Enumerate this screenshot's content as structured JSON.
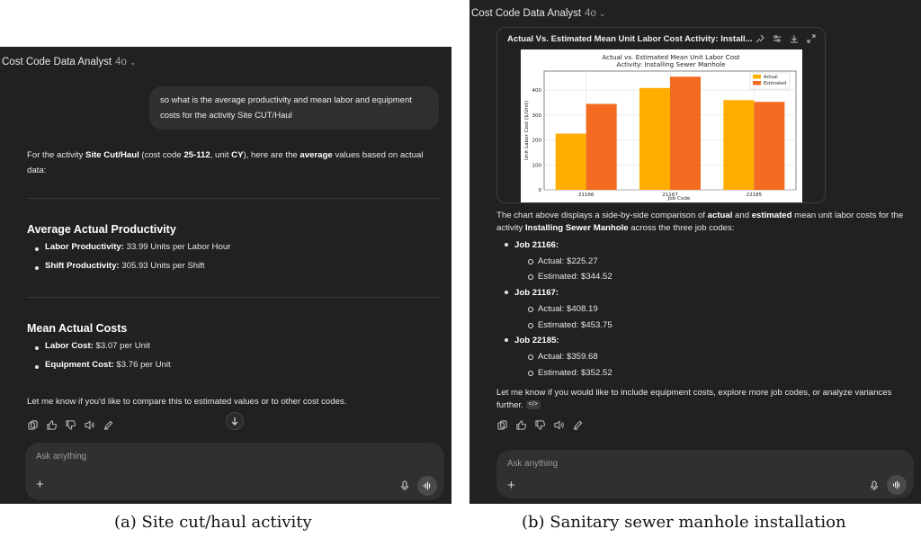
{
  "app": {
    "title": "Cost Code Data Analyst",
    "model": "4o"
  },
  "panel_a": {
    "user_message": "so what is the average productivity and mean labor and equipment costs for the activity Site CUT/Haul",
    "intro": {
      "p1": "For the activity ",
      "activity": "Site Cut/Haul",
      "p2": " (cost code ",
      "code": "25-112",
      "p3": ", unit ",
      "unit": "CY",
      "p4": "), here are the ",
      "avg": "average",
      "p5": " values based on actual data:"
    },
    "section1": {
      "heading": "Average Actual Productivity",
      "items": [
        {
          "label": "Labor Productivity:",
          "value": " 33.99 Units per Labor Hour"
        },
        {
          "label": "Shift Productivity:",
          "value": " 305.93 Units per Shift"
        }
      ]
    },
    "section2": {
      "heading": "Mean Actual Costs",
      "items": [
        {
          "label": "Labor Cost:",
          "value": " $3.07 per Unit"
        },
        {
          "label": "Equipment Cost:",
          "value": " $3.76 per Unit"
        }
      ]
    },
    "closing": "Let me know if you'd like to compare this to estimated values or to other cost codes.",
    "composer_placeholder": "Ask anything"
  },
  "panel_b": {
    "card_title": "Actual Vs. Estimated Mean Unit Labor Cost Activity: Install...",
    "intro": {
      "p1": "The chart above displays a side-by-side comparison of ",
      "actual": "actual",
      "p2": " and ",
      "estimated": "estimated",
      "p3": " mean unit labor costs for the activity ",
      "activity": "Installing Sewer Manhole",
      "p4": " across the three job codes:"
    },
    "jobs": [
      {
        "label": "Job 21166:",
        "actual": "Actual: $225.27",
        "estimated": "Estimated: $344.52"
      },
      {
        "label": "Job 21167:",
        "actual": "Actual: $408.19",
        "estimated": "Estimated: $453.75"
      },
      {
        "label": "Job 22185:",
        "actual": "Actual: $359.68",
        "estimated": "Estimated: $352.52"
      }
    ],
    "closing": "Let me know if you would like to include equipment costs, explore more job codes, or analyze variances further.",
    "code_chip": "</>",
    "composer_placeholder": "Ask anything"
  },
  "captions": {
    "a": "(a) Site cut/haul activity",
    "b": "(b) Sanitary sewer manhole installation"
  },
  "colors": {
    "actual": "#ffae00",
    "estimated": "#f26b21",
    "panel_bg": "#212121"
  },
  "chart_data": {
    "type": "bar",
    "title": "Actual vs. Estimated Mean Unit Labor Cost\nActivity: Installing Sewer Manhole",
    "xlabel": "Job Code",
    "ylabel": "Unit Labor Cost ($/Unit)",
    "categories": [
      "21166",
      "21167",
      "22185"
    ],
    "series": [
      {
        "name": "Actual",
        "values": [
          225.27,
          408.19,
          359.68
        ],
        "color": "#ffae00"
      },
      {
        "name": "Estimated",
        "values": [
          344.52,
          453.75,
          352.52
        ],
        "color": "#f26b21"
      }
    ],
    "yticks": [
      0,
      100,
      200,
      300,
      400
    ],
    "ylim": [
      0,
      476
    ],
    "grid": true,
    "legend": "top-right"
  }
}
